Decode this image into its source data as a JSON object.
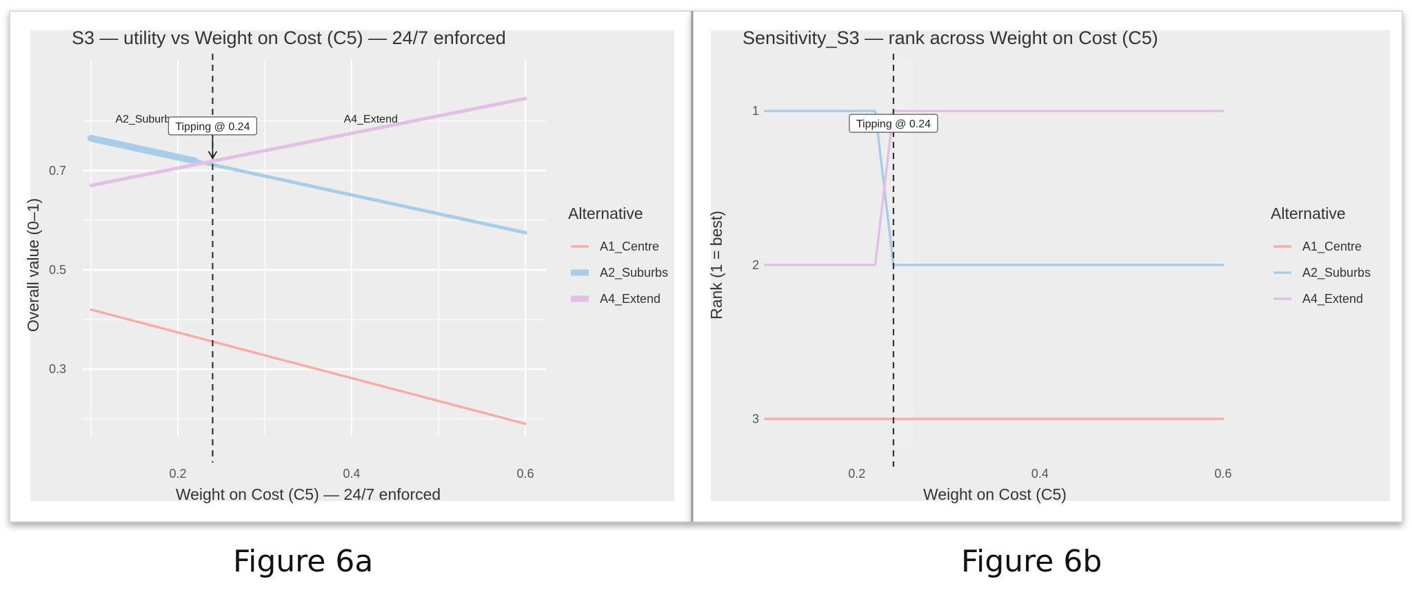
{
  "captions": [
    "Figure 6a",
    "Figure 6b"
  ],
  "chart_data": [
    {
      "type": "line",
      "title": "S3 — utility vs Weight on Cost (C5) — 24/7 enforced",
      "xlabel": "Weight on Cost (C5) — 24/7 enforced",
      "ylabel": "Overall value (0–1)",
      "xlim": [
        0.1,
        0.6
      ],
      "ylim": [
        0.17,
        0.83
      ],
      "xticks": [
        0.2,
        0.4,
        0.6
      ],
      "yticks": [
        0.3,
        0.5,
        0.7
      ],
      "grid": true,
      "legend_title": "Alternative",
      "legend_position": "right",
      "vline": {
        "x": 0.24,
        "style": "dashed"
      },
      "annotations": [
        {
          "text": "A2_Suburbs",
          "x": 0.163,
          "y": 0.805
        },
        {
          "text": "A4_Extend",
          "x": 0.422,
          "y": 0.805
        },
        {
          "text": "Tipping @ 0.24",
          "x": 0.24,
          "y": 0.79,
          "arrow_to": [
            0.24,
            0.725
          ]
        }
      ],
      "series": [
        {
          "name": "A1_Centre",
          "color": "#f8aca6",
          "x": [
            0.1,
            0.6
          ],
          "y": [
            0.42,
            0.19
          ]
        },
        {
          "name": "A2_Suburbs",
          "color": "#a8cde8",
          "x": [
            0.1,
            0.6
          ],
          "y": [
            0.765,
            0.575
          ]
        },
        {
          "name": "A4_Extend",
          "color": "#e2bfe4",
          "x": [
            0.1,
            0.6
          ],
          "y": [
            0.67,
            0.845
          ]
        }
      ]
    },
    {
      "type": "line",
      "title": "Sensitivity_S3 — rank across Weight on Cost (C5)",
      "xlabel": "Weight on Cost (C5)",
      "ylabel": "Rank (1 = best)",
      "xlim": [
        0.1,
        0.6
      ],
      "ylim": [
        3.15,
        0.78
      ],
      "xticks": [
        0.2,
        0.4,
        0.6
      ],
      "yticks": [
        1,
        2,
        3
      ],
      "grid": false,
      "legend_title": "Alternative",
      "legend_position": "right",
      "vline": {
        "x": 0.24,
        "style": "dashed"
      },
      "annotations": [
        {
          "text": "Tipping @ 0.24",
          "x": 0.24,
          "y": 1.08
        }
      ],
      "series": [
        {
          "name": "A1_Centre",
          "color": "#f8aca6",
          "x": [
            0.1,
            0.6
          ],
          "y": [
            3,
            3
          ]
        },
        {
          "name": "A2_Suburbs",
          "color": "#a8cde8",
          "x": [
            0.1,
            0.22,
            0.24,
            0.6
          ],
          "y": [
            1,
            1,
            2,
            2
          ]
        },
        {
          "name": "A4_Extend",
          "color": "#e2bfe4",
          "x": [
            0.1,
            0.22,
            0.24,
            0.6
          ],
          "y": [
            2,
            2,
            1,
            1
          ]
        }
      ]
    }
  ]
}
